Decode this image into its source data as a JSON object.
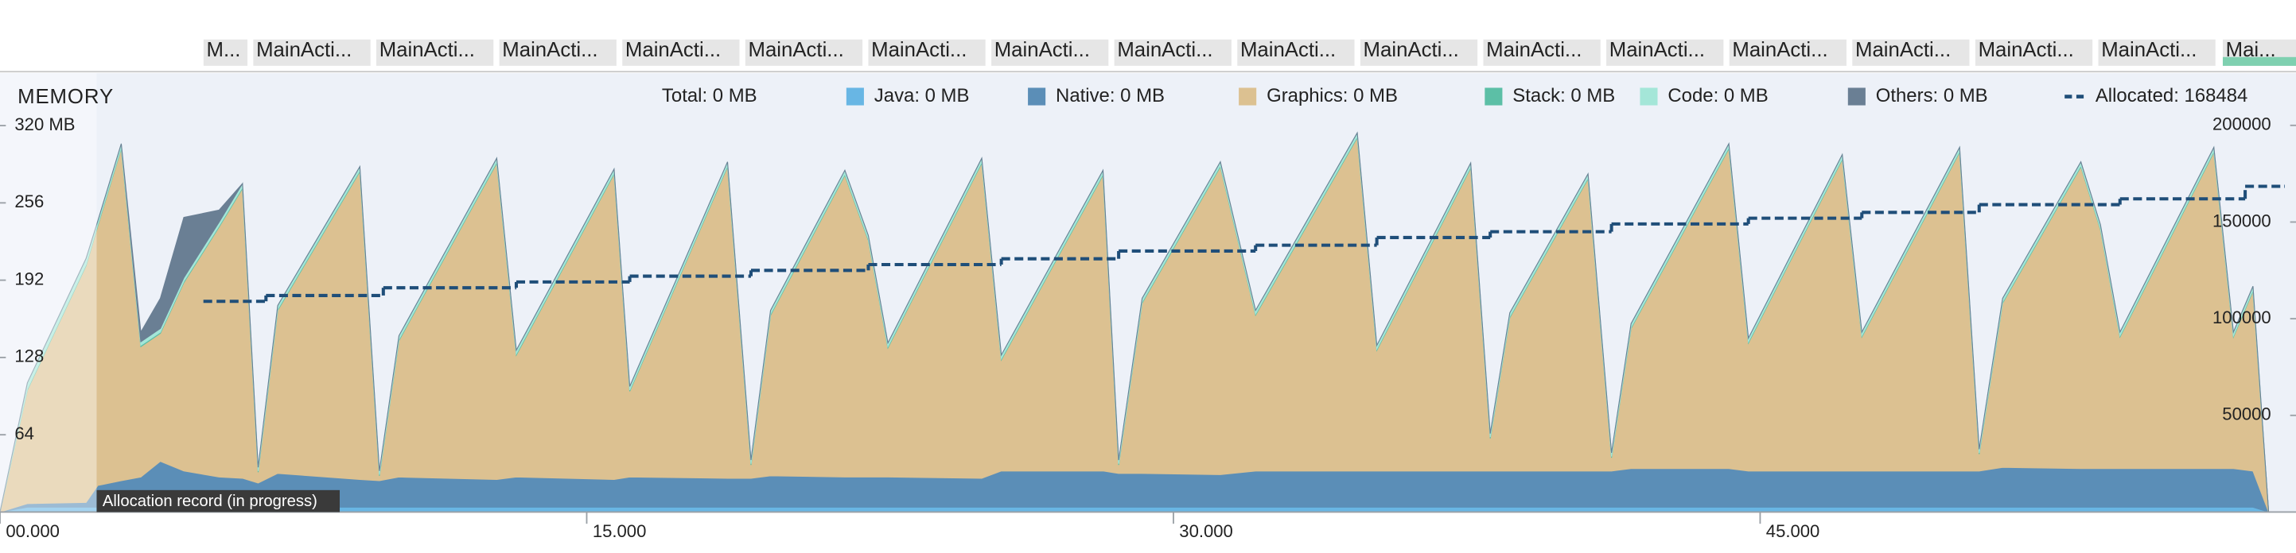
{
  "activity_bar": {
    "labels": [
      "M...",
      "MainActi...",
      "MainActi...",
      "MainActi...",
      "MainActi...",
      "MainActi...",
      "MainActi...",
      "MainActi...",
      "MainActi...",
      "MainActi...",
      "MainActi...",
      "MainActi...",
      "MainActi...",
      "MainActi...",
      "MainActi...",
      "MainActi...",
      "MainActi...",
      "Mai..."
    ]
  },
  "chart_data": {
    "type": "stacked-area",
    "title": "MEMORY",
    "total_label": "Total: 0 MB",
    "annotation": "Allocation record (in progress)",
    "x": [
      0,
      0.7,
      2.2,
      2.5,
      3.1,
      3.6,
      4.1,
      4.7,
      5.6,
      6.2,
      6.6,
      7.1,
      9.2,
      9.7,
      10.2,
      12.7,
      13.2,
      15.7,
      16.1,
      18.6,
      19.2,
      19.7,
      21.6,
      22.2,
      22.7,
      25.1,
      25.6,
      28.2,
      28.6,
      29.2,
      31.2,
      32.1,
      34.7,
      35.2,
      37.6,
      38.1,
      38.6,
      40.6,
      41.2,
      41.7,
      44.2,
      44.7,
      47.1,
      47.6,
      50.1,
      50.6,
      51.2,
      53.2,
      53.7,
      54.2,
      56.6,
      57.1,
      57.6,
      58.0
    ],
    "series": [
      {
        "name": "Java: 0 MB",
        "color": "#68b6e4",
        "values": [
          0,
          4,
          4,
          4,
          4,
          4,
          4,
          4,
          4,
          4,
          4,
          4,
          4,
          4,
          4,
          4,
          4,
          4,
          4,
          4,
          4,
          4,
          4,
          4,
          4,
          4,
          4,
          4,
          4,
          4,
          4,
          4,
          4,
          4,
          4,
          4,
          4,
          4,
          4,
          4,
          4,
          4,
          4,
          4,
          4,
          4,
          4,
          4,
          4,
          4,
          4,
          4,
          4,
          0
        ]
      },
      {
        "name": "Native: 0 MB",
        "color": "#5b8eb7",
        "values": [
          0,
          3,
          4,
          18,
          22,
          25,
          38,
          30,
          25,
          24,
          20,
          28,
          23,
          22,
          25,
          23,
          25,
          23,
          25,
          24,
          24,
          26,
          25,
          25,
          25,
          24,
          30,
          30,
          28,
          28,
          27,
          30,
          30,
          30,
          30,
          30,
          30,
          30,
          30,
          32,
          32,
          30,
          30,
          30,
          30,
          30,
          33,
          32,
          32,
          32,
          32,
          32,
          30,
          0
        ]
      },
      {
        "name": "Graphics: 0 MB",
        "color": "#dcc191",
        "values": [
          0,
          94,
          196,
          215,
          275,
          108,
          106,
          156,
          207,
          240,
          9,
          135,
          255,
          4,
          113,
          262,
          101,
          253,
          71,
          258,
          11,
          133,
          250,
          196,
          107,
          261,
          92,
          245,
          7,
          141,
          255,
          129,
          276,
          100,
          251,
          27,
          127,
          242,
          11,
          116,
          265,
          106,
          258,
          111,
          264,
          14,
          136,
          250,
          198,
          109,
          262,
          109,
          149,
          0
        ]
      },
      {
        "name": "Stack: 0 MB",
        "color": "#5cbfa6",
        "values": [
          0,
          1,
          1,
          1,
          1,
          1,
          1,
          1,
          1,
          1,
          1,
          1,
          1,
          1,
          1,
          1,
          1,
          1,
          1,
          1,
          1,
          1,
          1,
          1,
          1,
          1,
          1,
          1,
          1,
          1,
          1,
          1,
          1,
          1,
          1,
          1,
          1,
          1,
          1,
          1,
          1,
          1,
          1,
          1,
          1,
          1,
          1,
          1,
          1,
          1,
          1,
          1,
          1,
          0
        ]
      },
      {
        "name": "Code: 0 MB",
        "color": "#a4e6d8",
        "values": [
          0,
          5,
          5,
          3,
          3,
          3,
          3,
          3,
          3,
          3,
          3,
          3,
          3,
          3,
          3,
          3,
          3,
          3,
          3,
          3,
          3,
          3,
          3,
          3,
          3,
          3,
          3,
          3,
          3,
          3,
          3,
          3,
          3,
          3,
          3,
          3,
          3,
          3,
          3,
          3,
          3,
          3,
          3,
          3,
          3,
          3,
          3,
          3,
          3,
          3,
          3,
          3,
          3,
          0
        ]
      },
      {
        "name": "Others: 0 MB",
        "color": "#6a7f94",
        "values": [
          0,
          0,
          0,
          0,
          0,
          8,
          25,
          50,
          10,
          0,
          0,
          0,
          0,
          0,
          0,
          0,
          0,
          0,
          0,
          0,
          0,
          0,
          0,
          0,
          0,
          0,
          0,
          0,
          0,
          0,
          0,
          0,
          0,
          0,
          0,
          0,
          0,
          0,
          0,
          0,
          0,
          0,
          0,
          0,
          0,
          0,
          0,
          0,
          0,
          0,
          0,
          0,
          0,
          0
        ]
      },
      {
        "name": "Allocated: 168484",
        "color": "#1f4e79",
        "axis": "y2",
        "line_style": "dashed",
        "x": [
          5.2,
          6.8,
          9.8,
          13.2,
          16.1,
          19.2,
          22.2,
          25.6,
          28.6,
          32.1,
          35.2,
          38.1,
          41.2,
          44.7,
          47.6,
          50.6,
          54.2,
          57.4,
          58.4
        ],
        "values": [
          109000,
          112000,
          116000,
          119000,
          122000,
          125000,
          128000,
          131000,
          135000,
          138000,
          142000,
          145000,
          149000,
          152000,
          155000,
          159000,
          162000,
          168484,
          168484
        ]
      }
    ],
    "xlim": [
      0,
      58.7
    ],
    "xticks": [
      {
        "value": 0,
        "label": "00.000"
      },
      {
        "value": 15,
        "label": "15.000"
      },
      {
        "value": 30,
        "label": "30.000"
      },
      {
        "value": 45,
        "label": "45.000"
      }
    ],
    "ylim": [
      0,
      361
    ],
    "yticks": [
      64,
      128,
      192,
      256,
      {
        "value": 320,
        "label": "320 MB"
      }
    ],
    "y2lim": [
      0,
      225500
    ],
    "y2ticks": [
      50000,
      100000,
      150000,
      200000
    ]
  }
}
